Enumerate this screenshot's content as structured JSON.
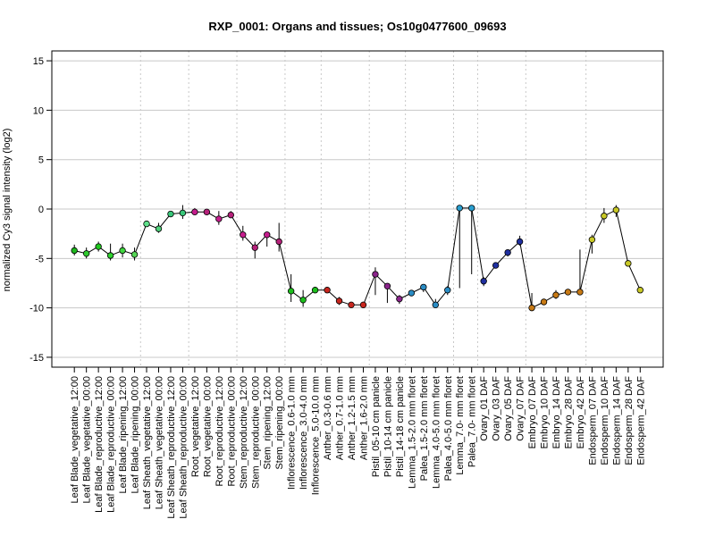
{
  "chart_data": {
    "type": "line",
    "title": "RXP_0001: Organs and tissues; Os10g0477600_09693",
    "xlabel": "",
    "ylabel": "normalized Cy3 signal intensity (log2)",
    "ylim": [
      -16,
      16
    ],
    "yticks": [
      -15,
      -10,
      -5,
      0,
      5,
      10,
      15
    ],
    "grid": true,
    "legend": "none",
    "categories": [
      "Leaf Blade_vegetative_12:00",
      "Leaf Blade_vegetative_00:00",
      "Leaf Blade_reproductive_12:00",
      "Leaf Blade_reproductive_00:00",
      "Leaf Blade_ripening_12:00",
      "Leaf Blade_ripening_00:00",
      "Leaf Sheath_vegetative_12:00",
      "Leaf Sheath_vegetative_00:00",
      "Leaf Sheath_reproductive_12:00",
      "Leaf Sheath_reproductive_00:00",
      "Root_vegetative_12:00",
      "Root_vegetative_00:00",
      "Root_reproductive_12:00",
      "Root_reproductive_00:00",
      "Stem_reproductive_12:00",
      "Stem_reproductive_00:00",
      "Stem_ripening_12:00",
      "Stem_ripening_00:00",
      "Inflorescence_0.6-1.0 mm",
      "Inflorescence_3.0-4.0 mm",
      "Inflorescence_5.0-10.0 mm",
      "Anther_0.3-0.6 mm",
      "Anther_0.7-1.0 mm",
      "Anther_1.2-1.5 mm",
      "Anther_1.6-2.0 mm",
      "Pistil_05-10 cm panicle",
      "Pistil_10-14 cm panicle",
      "Pistil_14-18 cm panicle",
      "Lemma_1.5-2.0 mm floret",
      "Palea_1.5-2.0 mm floret",
      "Lemma_4.0-5.0 mm floret",
      "Palea_4.0-5.0 mm floret",
      "Lemma_7.0- mm floret",
      "Palea_7.0- mm floret",
      "Ovary_01 DAF",
      "Ovary_03 DAF",
      "Ovary_05 DAF",
      "Ovary_07 DAF",
      "Embryo_07 DAF",
      "Embryo_10 DAF",
      "Embryo_14 DAF",
      "Embryo_28 DAF",
      "Embryo_42 DAF",
      "Endosperm_07 DAF",
      "Endosperm_10 DAF",
      "Endosperm_14 DAF",
      "Endosperm_28 DAF",
      "Endosperm_42 DAF"
    ],
    "values": [
      -4.2,
      -4.5,
      -3.8,
      -4.7,
      -4.2,
      -4.6,
      -1.5,
      -2.0,
      -0.5,
      -0.4,
      -0.3,
      -0.3,
      -1.0,
      -0.6,
      -2.6,
      -3.9,
      -2.6,
      -3.3,
      -8.3,
      -9.2,
      -8.2,
      -8.2,
      -9.3,
      -9.7,
      -9.7,
      -6.6,
      -7.8,
      -9.1,
      -8.5,
      -7.9,
      -9.7,
      -8.2,
      0.1,
      0.1,
      -7.3,
      -5.7,
      -4.4,
      -3.3,
      -10.0,
      -9.4,
      -8.7,
      -8.4,
      -8.4,
      -3.1,
      -0.7,
      -0.1,
      -5.5,
      -8.2
    ],
    "errors_low": [
      -4.7,
      -5.0,
      -4.3,
      -5.2,
      -4.9,
      -5.2,
      -1.7,
      -2.4,
      -0.8,
      -1.0,
      -0.6,
      -0.5,
      -1.6,
      -0.9,
      -3.2,
      -5.0,
      -3.8,
      -4.3,
      -9.4,
      -9.9,
      -8.5,
      -8.4,
      -9.7,
      -9.8,
      -9.8,
      -8.7,
      -9.5,
      -9.6,
      -8.8,
      -8.4,
      -9.8,
      -8.7,
      -8.0,
      -6.6,
      -7.8,
      -5.9,
      -4.8,
      -3.7,
      -10.0,
      -9.6,
      -9.1,
      -8.6,
      -8.6,
      -4.5,
      -1.4,
      -0.8,
      -5.7,
      -8.4
    ],
    "errors_high": [
      -3.6,
      -3.9,
      -3.3,
      -3.5,
      -3.5,
      -3.9,
      -1.2,
      -1.4,
      -0.2,
      0.4,
      0.1,
      -0.1,
      -0.2,
      -0.2,
      -1.7,
      -3.3,
      -2.3,
      -1.4,
      -6.6,
      -8.2,
      -7.9,
      -7.9,
      -8.9,
      -9.5,
      -9.5,
      -5.9,
      -7.5,
      -8.7,
      -8.2,
      -7.6,
      -9.1,
      -7.8,
      0.4,
      0.3,
      -6.9,
      -5.5,
      -4.1,
      -2.7,
      -8.5,
      -9.1,
      -8.2,
      -8.1,
      -4.1,
      -2.6,
      0.1,
      0.4,
      -5.3,
      -8.0
    ],
    "colors": [
      "#1db81d",
      "#2ec92e",
      "#1ec81e",
      "#2ed22e",
      "#3fd63f",
      "#55d555",
      "#5fe08a",
      "#4fcf7a",
      "#39c77a",
      "#39c77a",
      "#c51d8d",
      "#b5217a",
      "#c51d8d",
      "#b5217a",
      "#c51d8d",
      "#b5217a",
      "#c51d8d",
      "#b5217a",
      "#1dbf1d",
      "#1dbf1d",
      "#1dbf1d",
      "#c8261e",
      "#c8261e",
      "#c8261e",
      "#c8261e",
      "#8a248a",
      "#8a248a",
      "#8a248a",
      "#2a8cc4",
      "#2a8cc4",
      "#2a8cc4",
      "#2a8cc4",
      "#2a9fd0",
      "#2a9fd0",
      "#1f2fa0",
      "#1f2fa0",
      "#1f2fa0",
      "#1f2fa0",
      "#c87a14",
      "#c87a14",
      "#c87a14",
      "#c87a14",
      "#c87a14",
      "#c8c826",
      "#c8c826",
      "#c8c826",
      "#c8c826",
      "#c8c826"
    ]
  }
}
